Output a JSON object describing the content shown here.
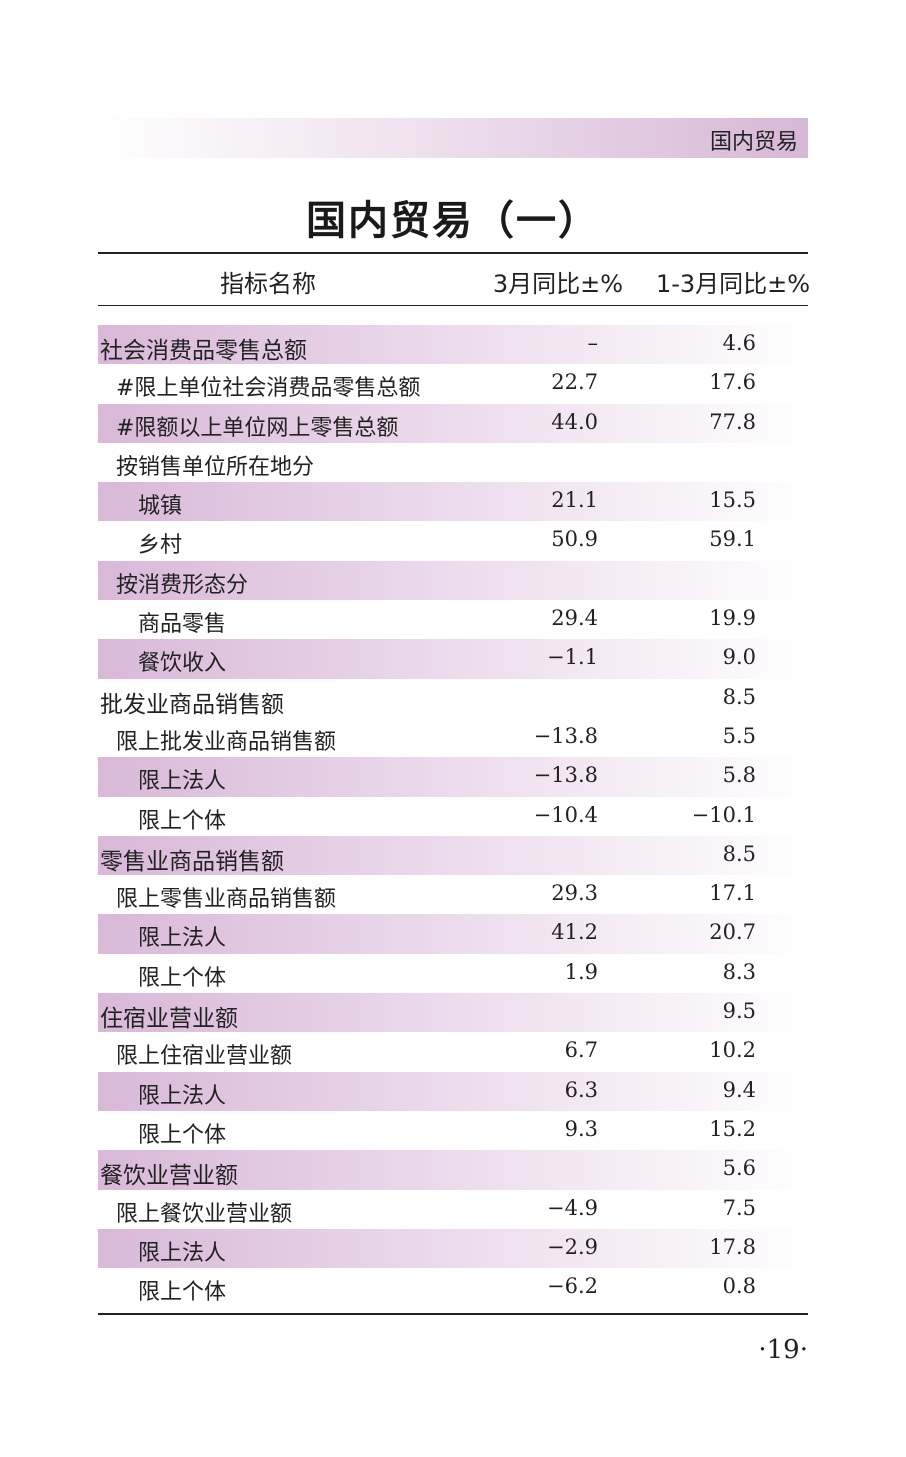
{
  "section_label": "国内贸易",
  "title": "国内贸易（一）",
  "headers": {
    "name": "指标名称",
    "col1": "3月同比±%",
    "col2": "1-3月同比±%"
  },
  "rows": [
    {
      "name": "社会消费品零售总额",
      "v1": "–",
      "v2": "4.6",
      "level": 0,
      "shade": true
    },
    {
      "name": "#限上单位社会消费品零售总额",
      "v1": "22.7",
      "v2": "17.6",
      "level": 1,
      "shade": false
    },
    {
      "name": "#限额以上单位网上零售总额",
      "v1": "44.0",
      "v2": "77.8",
      "level": 1,
      "shade": true
    },
    {
      "name": "按销售单位所在地分",
      "v1": "",
      "v2": "",
      "level": 1,
      "shade": false
    },
    {
      "name": "城镇",
      "v1": "21.1",
      "v2": "15.5",
      "level": 2,
      "shade": true
    },
    {
      "name": "乡村",
      "v1": "50.9",
      "v2": "59.1",
      "level": 2,
      "shade": false
    },
    {
      "name": "按消费形态分",
      "v1": "",
      "v2": "",
      "level": 1,
      "shade": true
    },
    {
      "name": "商品零售",
      "v1": "29.4",
      "v2": "19.9",
      "level": 2,
      "shade": false
    },
    {
      "name": "餐饮收入",
      "v1": "−1.1",
      "v2": "9.0",
      "level": 2,
      "shade": true
    },
    {
      "name": "批发业商品销售额",
      "v1": "",
      "v2": "8.5",
      "level": 0,
      "shade": false
    },
    {
      "name": "限上批发业商品销售额",
      "v1": "−13.8",
      "v2": "5.5",
      "level": 1,
      "shade": false
    },
    {
      "name": "限上法人",
      "v1": "−13.8",
      "v2": "5.8",
      "level": 2,
      "shade": true
    },
    {
      "name": "限上个体",
      "v1": "−10.4",
      "v2": "−10.1",
      "level": 2,
      "shade": false
    },
    {
      "name": "零售业商品销售额",
      "v1": "",
      "v2": "8.5",
      "level": 0,
      "shade": true
    },
    {
      "name": "限上零售业商品销售额",
      "v1": "29.3",
      "v2": "17.1",
      "level": 1,
      "shade": false
    },
    {
      "name": "限上法人",
      "v1": "41.2",
      "v2": "20.7",
      "level": 2,
      "shade": true
    },
    {
      "name": "限上个体",
      "v1": "1.9",
      "v2": "8.3",
      "level": 2,
      "shade": false
    },
    {
      "name": "住宿业营业额",
      "v1": "",
      "v2": "9.5",
      "level": 0,
      "shade": true
    },
    {
      "name": "限上住宿业营业额",
      "v1": "6.7",
      "v2": "10.2",
      "level": 1,
      "shade": false
    },
    {
      "name": "限上法人",
      "v1": "6.3",
      "v2": "9.4",
      "level": 2,
      "shade": true
    },
    {
      "name": "限上个体",
      "v1": "9.3",
      "v2": "15.2",
      "level": 2,
      "shade": false
    },
    {
      "name": "餐饮业营业额",
      "v1": "",
      "v2": "5.6",
      "level": 0,
      "shade": true
    },
    {
      "name": "限上餐饮业营业额",
      "v1": "−4.9",
      "v2": "7.5",
      "level": 1,
      "shade": false
    },
    {
      "name": "限上法人",
      "v1": "−2.9",
      "v2": "17.8",
      "level": 2,
      "shade": true
    },
    {
      "name": "限上个体",
      "v1": "−6.2",
      "v2": "0.8",
      "level": 2,
      "shade": false
    }
  ],
  "page_number": "·19·"
}
